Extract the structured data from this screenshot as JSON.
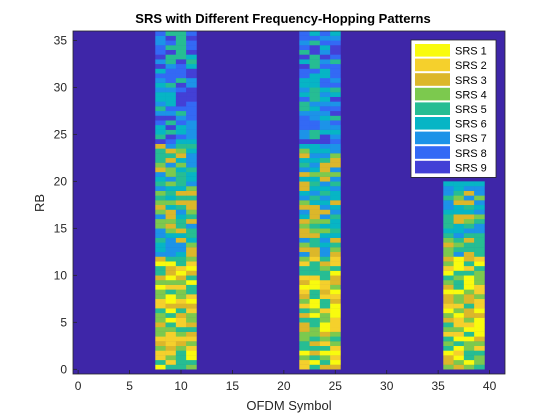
{
  "chart_data": {
    "type": "heatmap",
    "title": "SRS with Different Frequency-Hopping Patterns",
    "xlabel": "OFDM Symbol",
    "ylabel": "RB",
    "xlim": [
      -0.5,
      41.5
    ],
    "ylim": [
      -0.5,
      36
    ],
    "xticks": [
      0,
      5,
      10,
      15,
      20,
      25,
      30,
      35,
      40
    ],
    "yticks": [
      0,
      5,
      10,
      15,
      20,
      25,
      30,
      35
    ],
    "grid": false,
    "legend_position": "top-right",
    "background_color": "#3e26a8",
    "legend": [
      {
        "label": "SRS 1",
        "color": "#f9fb0e"
      },
      {
        "label": "SRS 2",
        "color": "#f5d02c"
      },
      {
        "label": "SRS 3",
        "color": "#dcb72a"
      },
      {
        "label": "SRS 4",
        "color": "#7cc94e"
      },
      {
        "label": "SRS 5",
        "color": "#26bd93"
      },
      {
        "label": "SRS 6",
        "color": "#06b5c5"
      },
      {
        "label": "SRS 7",
        "color": "#1c93e8"
      },
      {
        "label": "SRS 8",
        "color": "#3369f5"
      },
      {
        "label": "SRS 9",
        "color": "#4340d6"
      }
    ],
    "slots": [
      {
        "symbols": [
          8,
          9,
          10,
          11
        ],
        "rb_range": [
          0,
          36
        ],
        "split_rb": [
          12,
          24
        ]
      },
      {
        "symbols": [
          22,
          23,
          24,
          25
        ],
        "rb_range": [
          0,
          36
        ],
        "split_rb": [
          12,
          24
        ]
      },
      {
        "symbols": [
          36,
          37,
          38,
          39
        ],
        "rb_range": [
          0,
          20
        ],
        "split_rb": [
          12
        ]
      }
    ]
  }
}
